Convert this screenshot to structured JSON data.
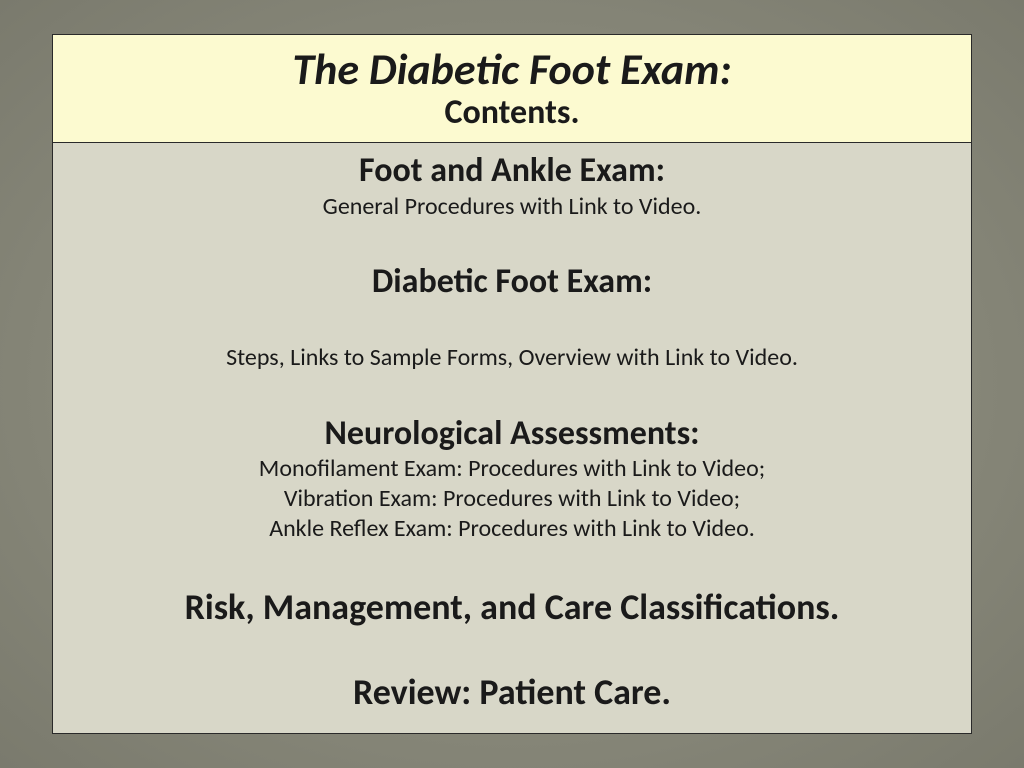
{
  "colors": {
    "page_bg_center": "#9a9a8a",
    "page_bg_edge": "#7a7a6d",
    "slide_bg": "#d8d7c8",
    "title_bg": "#fcfad0",
    "border": "#2a2a2a",
    "text": "#1a1a1a"
  },
  "typography": {
    "title_main_size": 44,
    "title_sub_size": 34,
    "heading_size": 34,
    "desc_size": 24,
    "big_heading_size": 36,
    "font_family": "Calibri"
  },
  "title": {
    "main": "The Diabetic Foot Exam:",
    "sub": "Contents."
  },
  "sections": [
    {
      "heading": "Foot and Ankle Exam:",
      "lines": [
        "General Procedures with Link to Video."
      ]
    },
    {
      "heading": "Diabetic Foot Exam:",
      "lines": [
        "Steps, Links to Sample Forms, Overview with Link to Video."
      ]
    },
    {
      "heading": "Neurological Assessments:",
      "lines": [
        "Monofilament Exam: Procedures with Link to Video;",
        "Vibration Exam: Procedures with Link to Video;",
        "Ankle Reflex Exam: Procedures with Link to Video."
      ]
    }
  ],
  "closing": [
    "Risk, Management, and Care Classifications.",
    "Review: Patient Care."
  ]
}
